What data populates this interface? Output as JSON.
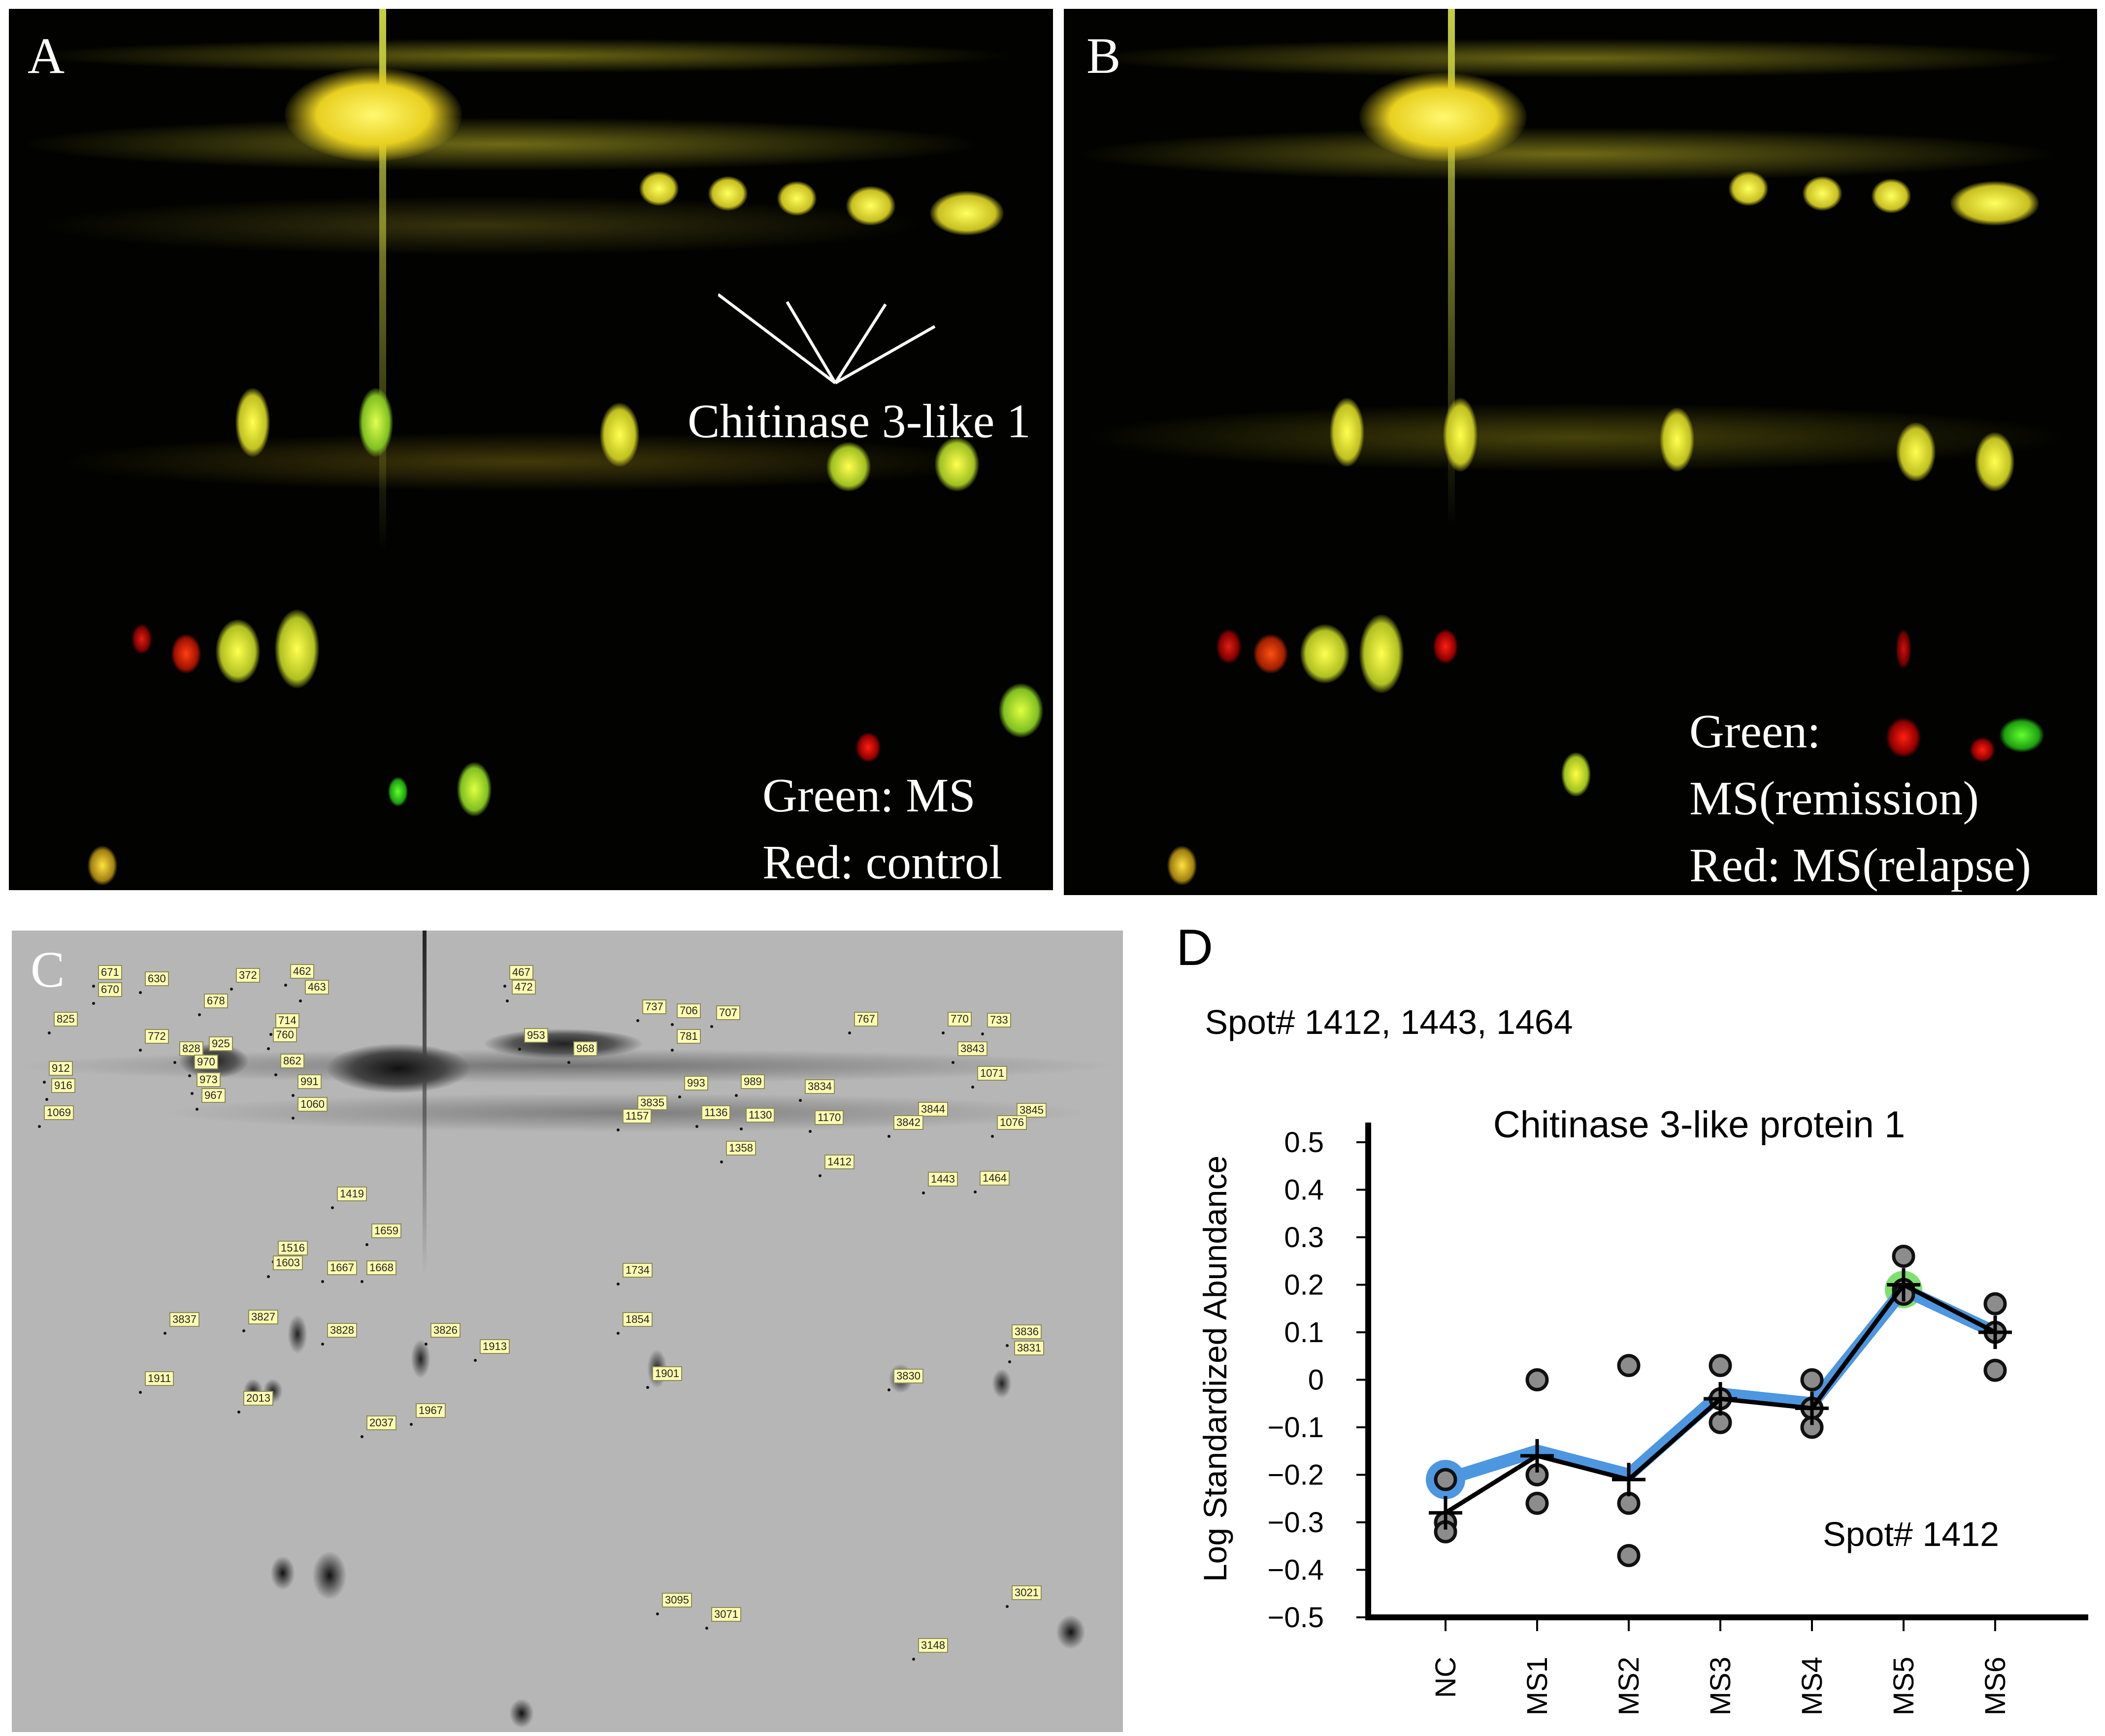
{
  "panel_a": {
    "label": "A",
    "annotation": "Chitinase 3-like 1",
    "legend_lines": [
      "Green: MS",
      "Red: control"
    ]
  },
  "panel_b": {
    "label": "B",
    "legend_lines": [
      "Green:",
      "MS(remission)",
      "Red: MS(relapse)"
    ]
  },
  "panel_c": {
    "label": "C",
    "spot_labels": [
      "671",
      "670",
      "630",
      "372",
      "462",
      "463",
      "467",
      "472",
      "825",
      "678",
      "714",
      "772",
      "828",
      "925",
      "760",
      "912",
      "916",
      "970",
      "973",
      "862",
      "991",
      "967",
      "1060",
      "1069",
      "737",
      "706",
      "707",
      "767",
      "770",
      "733",
      "781",
      "953",
      "968",
      "993",
      "989",
      "3834",
      "3843",
      "1071",
      "3844",
      "3845",
      "1076",
      "3842",
      "3835",
      "1157",
      "1136",
      "1130",
      "1170",
      "1358",
      "1412",
      "1443",
      "1464",
      "1419",
      "1659",
      "1516",
      "1603",
      "1667",
      "1668",
      "1734",
      "1854",
      "3837",
      "3827",
      "3828",
      "3826",
      "1913",
      "1901",
      "3830",
      "3836",
      "3831",
      "1911",
      "2013",
      "1967",
      "2037",
      "3095",
      "3071",
      "3148",
      "3021"
    ]
  },
  "panel_d": {
    "label": "D",
    "spot_header": "Spot# 1412, 1443, 1464",
    "spot_note": "Spot# 1412"
  },
  "chart_data": {
    "type": "line",
    "title": "Chitinase 3-like protein 1",
    "xlabel": "",
    "ylabel": "Log Standardized Abundance",
    "categories": [
      "NC",
      "MS1",
      "MS2",
      "MS3",
      "MS4",
      "MS5",
      "MS6"
    ],
    "ylim": [
      -0.5,
      0.5
    ],
    "yticks": [
      "0.5",
      "0.4",
      "0.3",
      "0.2",
      "0.1",
      "0",
      "−0.1",
      "−0.2",
      "−0.3",
      "−0.4",
      "−0.5"
    ],
    "series": [
      {
        "name": "mean",
        "values": [
          -0.28,
          -0.16,
          -0.21,
          -0.04,
          -0.06,
          0.2,
          0.1
        ]
      },
      {
        "name": "representative",
        "values": [
          -0.21,
          -0.15,
          -0.2,
          -0.03,
          -0.05,
          0.19,
          0.1
        ]
      }
    ],
    "replicates": [
      {
        "category": "NC",
        "values": [
          -0.21,
          -0.3,
          -0.32
        ]
      },
      {
        "category": "MS1",
        "values": [
          0.0,
          -0.2,
          -0.26
        ]
      },
      {
        "category": "MS2",
        "values": [
          0.03,
          -0.26,
          -0.37
        ]
      },
      {
        "category": "MS3",
        "values": [
          0.03,
          -0.04,
          -0.09
        ]
      },
      {
        "category": "MS4",
        "values": [
          0.0,
          -0.06,
          -0.1
        ]
      },
      {
        "category": "MS5",
        "values": [
          0.26,
          0.19,
          0.18
        ]
      },
      {
        "category": "MS6",
        "values": [
          0.16,
          0.1,
          0.02
        ]
      }
    ],
    "colors": {
      "mean_line": "#000000",
      "rep_line": "#4d96e0",
      "dot_fill": "#8c8c8c",
      "highlight_nc": "#4d96e0",
      "highlight_ms5": "#7ee06e"
    }
  }
}
